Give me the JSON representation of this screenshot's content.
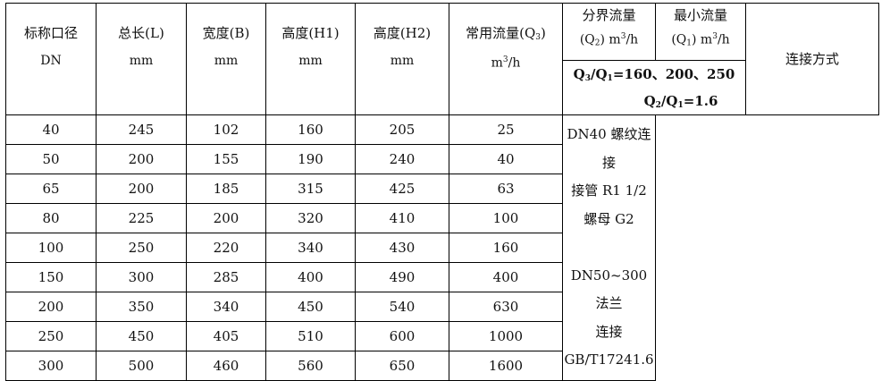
{
  "headers": {
    "dn": {
      "line1": "标称口径",
      "line2": "DN"
    },
    "length": {
      "line1": "总长(L)",
      "line2": "mm"
    },
    "width": {
      "line1": "宽度(B)",
      "line2": "mm"
    },
    "h1": {
      "line1": "高度(H1)",
      "line2": "mm"
    },
    "h2": {
      "line1": "高度(H2)",
      "line2": "mm"
    },
    "q3": {
      "line1": "常用流量(Q",
      "sub": "3",
      "close": ")",
      "unit_pre": "m",
      "unit_sup": "3",
      "unit_post": "/h"
    },
    "q2": {
      "line1": "分界流量",
      "line2_pre": "(Q",
      "sub": "2",
      "line2_post": ")  m",
      "sup": "3",
      "unit_post": "/h"
    },
    "q1": {
      "line1": "最小流量",
      "line2_pre": "(Q",
      "sub": "1",
      "line2_post": ")  m",
      "sup": "3",
      "unit_post": "/h"
    },
    "connection": "连接方式"
  },
  "rows": [
    [
      "40",
      "245",
      "102",
      "160",
      "205",
      "25"
    ],
    [
      "50",
      "200",
      "155",
      "190",
      "240",
      "40"
    ],
    [
      "65",
      "200",
      "185",
      "315",
      "425",
      "63"
    ],
    [
      "80",
      "225",
      "200",
      "320",
      "410",
      "100"
    ],
    [
      "100",
      "250",
      "220",
      "340",
      "430",
      "160"
    ],
    [
      "150",
      "300",
      "285",
      "400",
      "490",
      "400"
    ],
    [
      "200",
      "350",
      "340",
      "450",
      "540",
      "630"
    ],
    [
      "250",
      "450",
      "405",
      "510",
      "600",
      "1000"
    ],
    [
      "300",
      "500",
      "460",
      "560",
      "650",
      "1600"
    ]
  ],
  "ratio": {
    "line1_a": "Q",
    "line1_sub_a": "3",
    "line1_b": "/Q",
    "line1_sub_b": "1",
    "line1_c": "=160、200、250",
    "line2_a": "Q",
    "line2_sub_a": "2",
    "line2_b": "/Q",
    "line2_sub_b": "1",
    "line2_c": "=1.6"
  },
  "connection": [
    "DN40 螺纹连接",
    "接管 R1  1/2",
    "螺母 G2",
    "",
    "DN50~300 法兰",
    "连接",
    "GB/T17241.6"
  ]
}
